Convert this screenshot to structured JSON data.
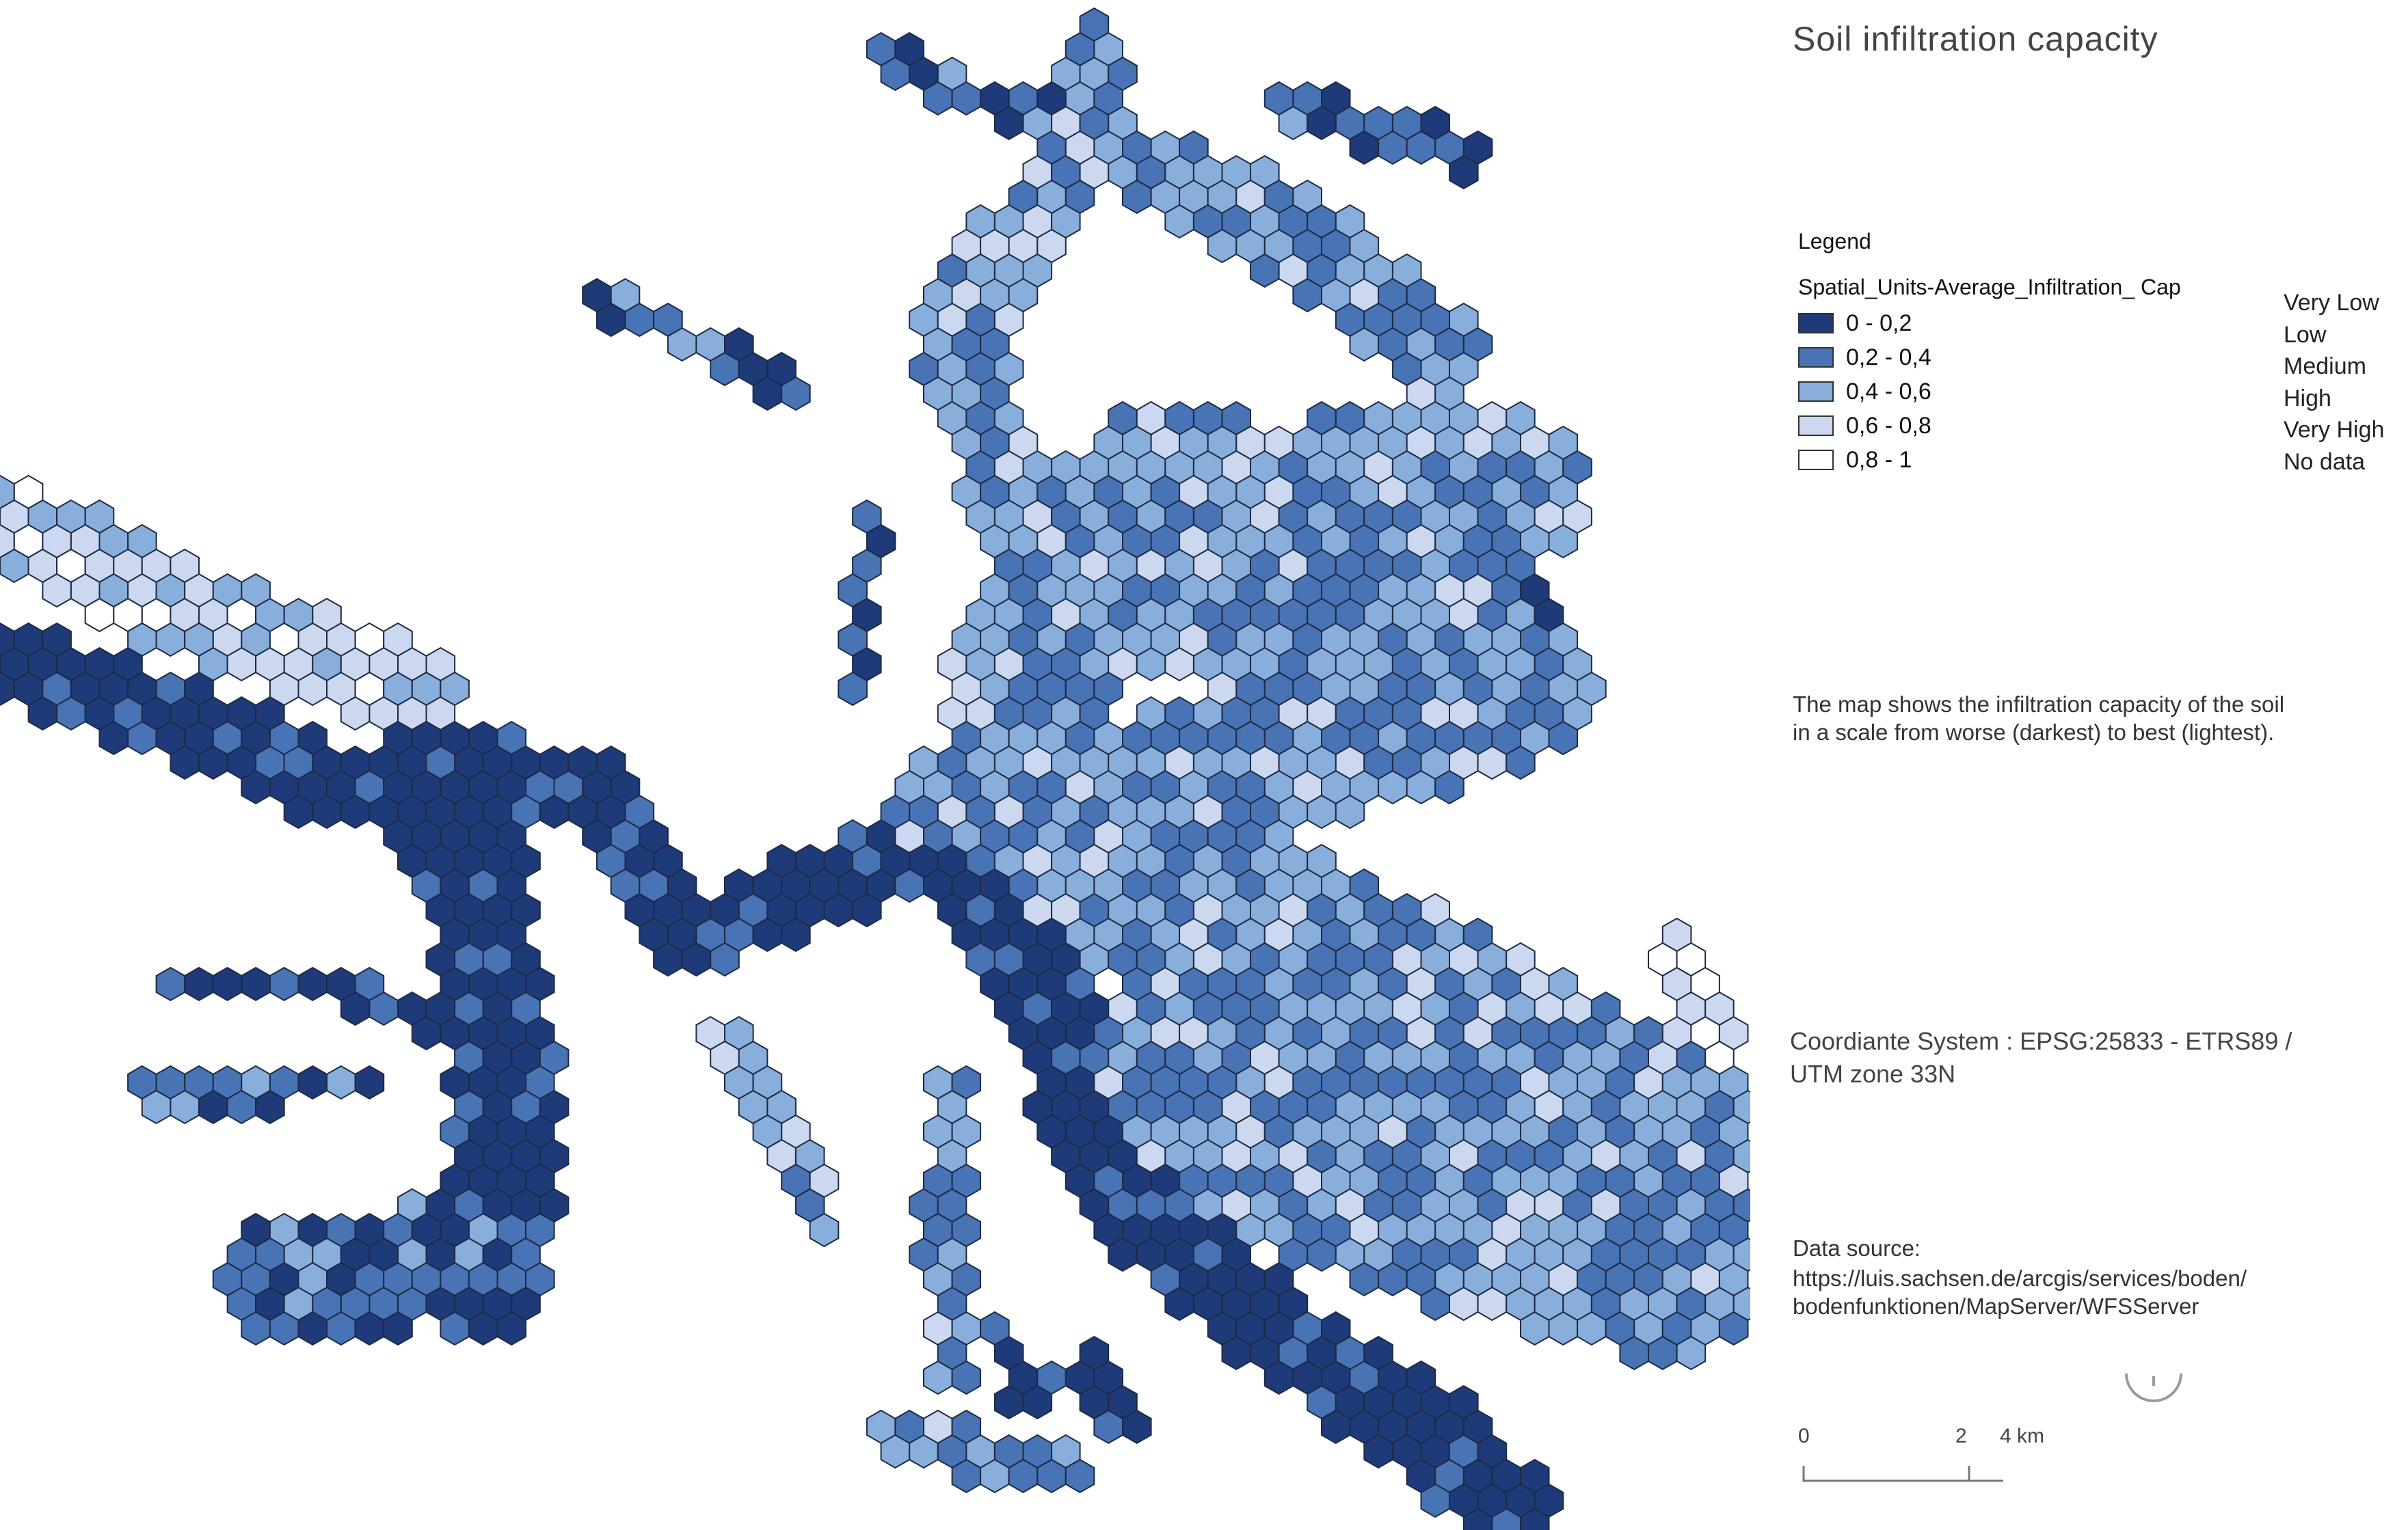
{
  "title": "Soil infiltration capacity",
  "legend": {
    "heading": "Legend",
    "field": "Spatial_Units-Average_Infiltration_ Cap",
    "items": [
      {
        "label": "0 - 0,2",
        "color": "#1e3a78",
        "class": "Very Low"
      },
      {
        "label": "0,2 - 0,4",
        "color": "#4873b4",
        "class": "Low"
      },
      {
        "label": "0,4 - 0,6",
        "color": "#88aedb",
        "class": "Medium"
      },
      {
        "label": "0,6 - 0,8",
        "color": "#cbd8ef",
        "class": "High"
      },
      {
        "label": "0,8 - 1",
        "color": "#ffffff",
        "class": "Very High"
      }
    ],
    "extra_class": "No data"
  },
  "description": "The map shows the infiltration capacity of the soil in a scale from worse (darkest) to best (lightest).",
  "crs": "Coordiante System : EPSG:25833 - ETRS89 / UTM zone 33N",
  "data_source": {
    "label": "Data source:",
    "url": "https://luis.sachsen.de/arcgis/services/boden/bodenfunktionen/MapServer/WFSServer"
  },
  "scalebar": {
    "ticks": [
      "0",
      "2",
      "4 km"
    ]
  },
  "colors": {
    "stroke": "#1d2a44",
    "text": "#222222"
  }
}
